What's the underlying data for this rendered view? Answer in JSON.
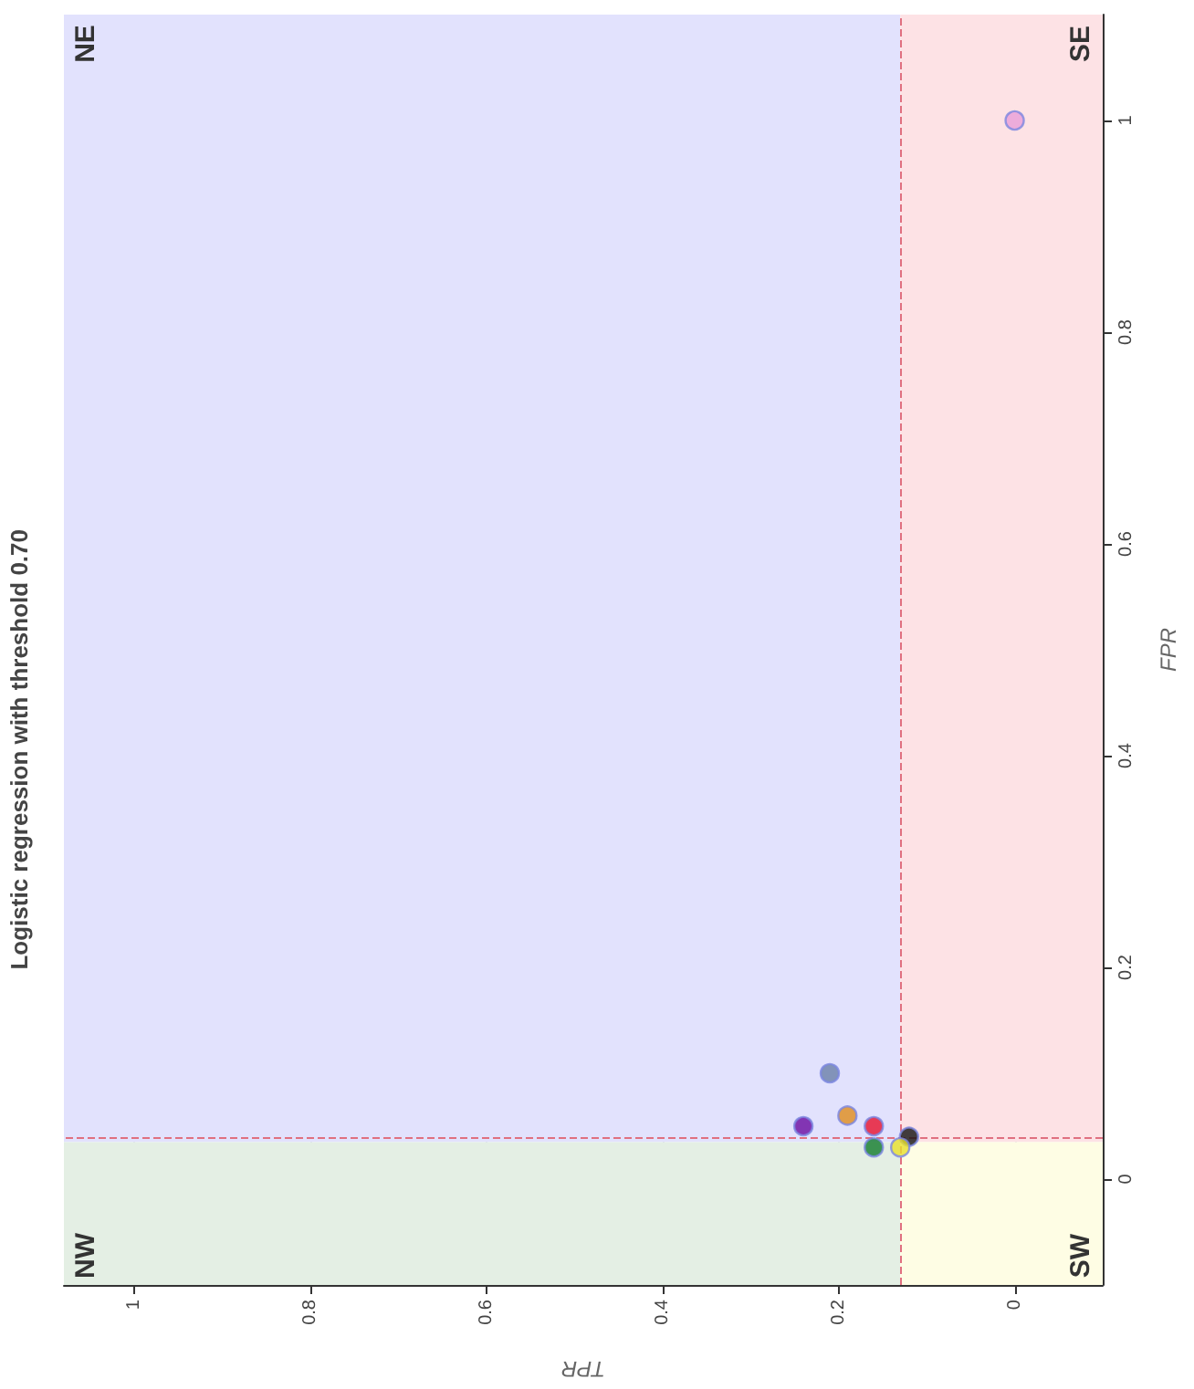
{
  "chart_data": {
    "type": "scatter",
    "title": "Logistic regression with threshold 0.70",
    "xlabel": "TPR",
    "ylabel": "FPR",
    "xlim": [
      1.08,
      -0.1
    ],
    "ylim": [
      -0.1,
      1.1
    ],
    "xticks": [
      1,
      0.8,
      0.6,
      0.4,
      0.2,
      0
    ],
    "yticks": [
      0,
      0.2,
      0.4,
      0.6,
      0.8,
      1
    ],
    "grid": true,
    "marker": "circle",
    "series": [
      {
        "x": [
          0,
          0.21,
          0.24,
          0.19,
          0.16,
          0.16,
          0.12,
          0.13
        ],
        "values": [
          1,
          0.1,
          0.05,
          0.06,
          0.05,
          0.03,
          0.04,
          0.03
        ],
        "colors": [
          "#e89fd8",
          "#6a7fa8",
          "#6a0aa0",
          "#e08c1a",
          "#e8102a",
          "#107a2a",
          "#111111",
          "#e8e02a"
        ]
      }
    ],
    "ref_lines": [
      {
        "axis": "x",
        "value": 0.13,
        "color": "#e07080",
        "line_style": "dashed"
      },
      {
        "axis": "y",
        "value": 0.035,
        "color": "#e07080",
        "line_style": "dashed"
      }
    ],
    "bands": [
      {
        "axis": "x",
        "from": 1.08,
        "to": 0.13,
        "label": "NE",
        "color": "#e2e2fd"
      },
      {
        "axis": "x",
        "from": 0.13,
        "to": -0.1,
        "label": "SE",
        "color": "#fde2e5"
      },
      {
        "axis": "x",
        "from": 1.08,
        "to": 0.13,
        "label": "NW",
        "color": "#e4efe4"
      },
      {
        "axis": "x",
        "from": 0.13,
        "to": -0.1,
        "label": "SW",
        "color": "#fefde4"
      }
    ]
  }
}
